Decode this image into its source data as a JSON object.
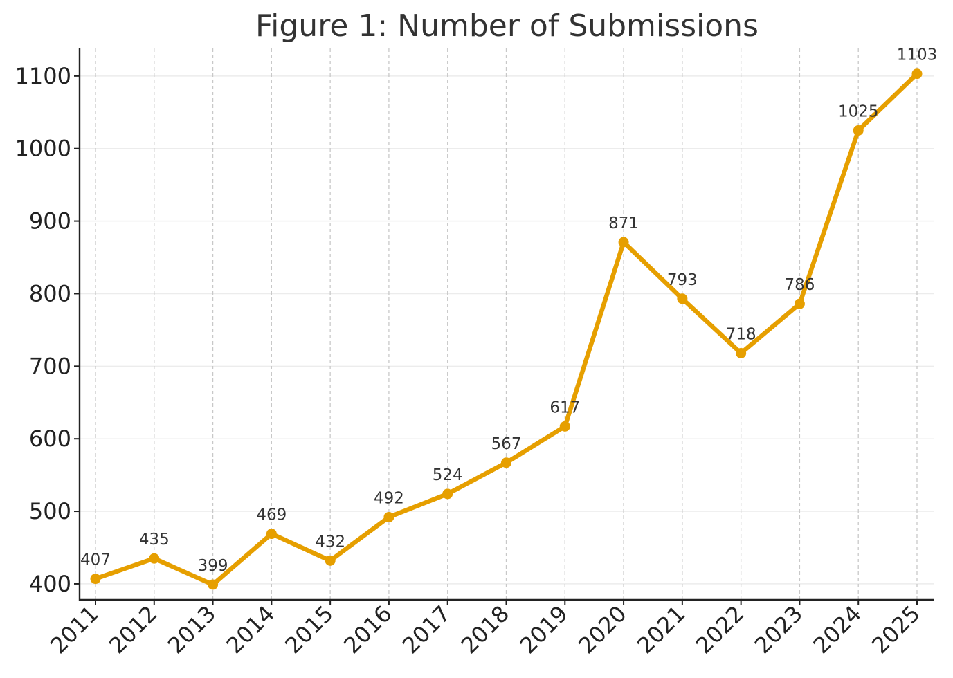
{
  "chart_data": {
    "type": "line",
    "title": "Figure 1: Number of Submissions",
    "xlabel": "",
    "ylabel": "",
    "categories": [
      "2011",
      "2012",
      "2013",
      "2014",
      "2015",
      "2016",
      "2017",
      "2018",
      "2019",
      "2020",
      "2021",
      "2022",
      "2023",
      "2024",
      "2025"
    ],
    "series": [
      {
        "values": [
          407,
          435,
          399,
          469,
          432,
          492,
          524,
          567,
          617,
          871,
          793,
          718,
          786,
          1025,
          1103
        ],
        "color": "#E69F00"
      }
    ],
    "data_labels": [
      "407",
      "435",
      "399",
      "469",
      "432",
      "492",
      "524",
      "567",
      "617",
      "871",
      "793",
      "718",
      "786",
      "1025",
      "1103"
    ],
    "y_ticks": [
      400,
      500,
      600,
      700,
      800,
      900,
      1000,
      1100
    ],
    "y_tick_labels": [
      "400",
      "500",
      "600",
      "700",
      "800",
      "900",
      "1000",
      "1100"
    ],
    "ylim": [
      378,
      1138
    ],
    "grid": {
      "vertical": "dashed",
      "horizontal": "solid-light"
    },
    "legend": "none",
    "colors": {
      "line": "#E69F00",
      "axis": "#222222",
      "vgrid": "#c8c8c8",
      "hgrid": "#ececec",
      "label_text": "#333333",
      "tick_text": "#222222"
    }
  }
}
